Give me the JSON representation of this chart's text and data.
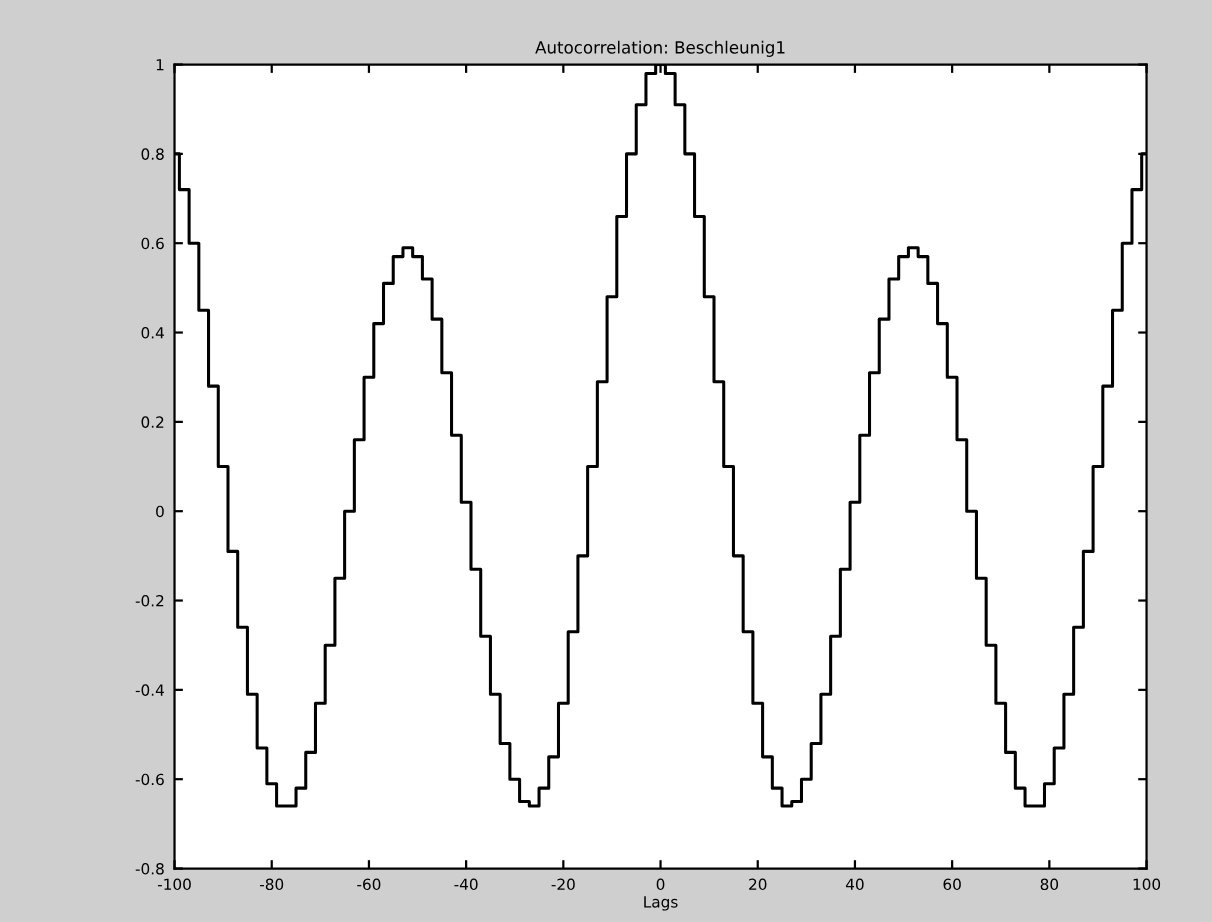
{
  "chart_data": {
    "type": "step",
    "title": "Autocorrelation: Beschleunig1",
    "xlabel": "Lags",
    "x": [
      -100,
      -98,
      -96,
      -94,
      -92,
      -90,
      -88,
      -86,
      -84,
      -82,
      -80,
      -78,
      -76,
      -74,
      -72,
      -70,
      -68,
      -66,
      -64,
      -62,
      -60,
      -58,
      -56,
      -54,
      -52,
      -50,
      -48,
      -46,
      -44,
      -42,
      -40,
      -38,
      -36,
      -34,
      -32,
      -30,
      -28,
      -26,
      -24,
      -22,
      -20,
      -18,
      -16,
      -14,
      -12,
      -10,
      -8,
      -6,
      -4,
      -2,
      0,
      2,
      4,
      6,
      8,
      10,
      12,
      14,
      16,
      18,
      20,
      22,
      24,
      26,
      28,
      30,
      32,
      34,
      36,
      38,
      40,
      42,
      44,
      46,
      48,
      50,
      52,
      54,
      56,
      58,
      60,
      62,
      64,
      66,
      68,
      70,
      72,
      74,
      76,
      78,
      80,
      82,
      84,
      86,
      88,
      90,
      92,
      94,
      96,
      98,
      100
    ],
    "series": [
      {
        "color": "#000000",
        "values": [
          0.8,
          0.72,
          0.6,
          0.45,
          0.28,
          0.1,
          -0.09,
          -0.26,
          -0.41,
          -0.53,
          -0.61,
          -0.66,
          -0.66,
          -0.62,
          -0.54,
          -0.43,
          -0.3,
          -0.15,
          0.0,
          0.16,
          0.3,
          0.42,
          0.51,
          0.57,
          0.59,
          0.57,
          0.52,
          0.43,
          0.31,
          0.17,
          0.02,
          -0.13,
          -0.28,
          -0.41,
          -0.52,
          -0.6,
          -0.65,
          -0.66,
          -0.62,
          -0.55,
          -0.43,
          -0.27,
          -0.1,
          0.1,
          0.29,
          0.48,
          0.66,
          0.8,
          0.91,
          0.98,
          1.0,
          0.98,
          0.91,
          0.8,
          0.66,
          0.48,
          0.29,
          0.1,
          -0.1,
          -0.27,
          -0.43,
          -0.55,
          -0.62,
          -0.66,
          -0.65,
          -0.6,
          -0.52,
          -0.41,
          -0.28,
          -0.13,
          0.02,
          0.17,
          0.31,
          0.43,
          0.52,
          0.57,
          0.59,
          0.57,
          0.51,
          0.42,
          0.3,
          0.16,
          0.0,
          -0.15,
          -0.3,
          -0.43,
          -0.54,
          -0.62,
          -0.66,
          -0.66,
          -0.61,
          -0.53,
          -0.41,
          -0.26,
          -0.09,
          0.1,
          0.28,
          0.45,
          0.6,
          0.72,
          0.8
        ]
      }
    ],
    "xlim": [
      -100,
      100
    ],
    "xticks": [
      -100,
      -80,
      -60,
      -40,
      -20,
      0,
      20,
      40,
      60,
      80,
      100
    ],
    "ylim": [
      -0.8,
      1
    ],
    "yticks": [
      -0.8,
      -0.6,
      -0.4,
      -0.2,
      0,
      0.2,
      0.4,
      0.6,
      0.8,
      1
    ],
    "grid": false,
    "line_style": "solid",
    "marker": "none"
  }
}
